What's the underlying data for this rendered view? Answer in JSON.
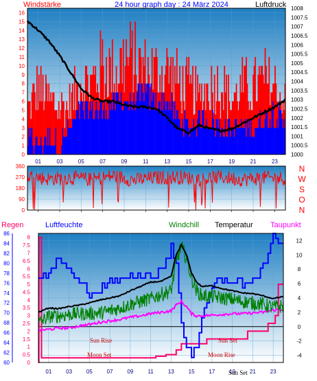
{
  "header": {
    "wind_label": "Windstärke",
    "title": "24 hour graph day : 24 März 2024",
    "pressure_label": "Luftdruck"
  },
  "compass": [
    "N",
    "W",
    "S",
    "O",
    "N"
  ],
  "bottom_labels": {
    "rain": "Regen",
    "humidity": "Luftfeuchte",
    "windchill": "Windchill",
    "temperature": "Temperatur",
    "dewpoint": "Taupunkt"
  },
  "annotations": {
    "sun_rise": "Sun Rise",
    "sun_set": "Sun Set",
    "moon_set": "Moon Set",
    "moon_rise": "Moon Rise",
    "sun_set_marker": "Sun Set"
  },
  "colors": {
    "wind_red": "#ff0000",
    "wind_blue": "#0000ff",
    "pressure": "#000000",
    "humidity": "#0000ff",
    "windchill": "#008000",
    "temperature": "#000000",
    "dewpoint": "#ff00ff",
    "rain": "#ff0066",
    "grad_top": "#1f7fc2",
    "grad_bottom": "#ffffff"
  },
  "chart_data": [
    {
      "type": "bar",
      "name_hint": "wind",
      "x_tick_labels": [
        "01",
        "03",
        "05",
        "07",
        "09",
        "11",
        "13",
        "15",
        "17",
        "19",
        "21",
        "23"
      ],
      "x_tick_hours": [
        1,
        3,
        5,
        7,
        9,
        11,
        13,
        15,
        17,
        19,
        21,
        23
      ],
      "xlim": [
        0,
        24
      ],
      "left_axis": {
        "ylim": [
          0,
          16.5
        ],
        "ticks": [
          0,
          1,
          2,
          3,
          4,
          5,
          6,
          7,
          8,
          9,
          10,
          11,
          12,
          13,
          14,
          15,
          16
        ]
      },
      "right_axis": {
        "ylim": [
          1000,
          1008
        ],
        "ticks": [
          1000,
          1000.5,
          1001,
          1001.5,
          1002,
          1002.5,
          1003,
          1003.5,
          1004,
          1004.5,
          1005,
          1005.5,
          1006,
          1006.5,
          1007,
          1007.5,
          1008
        ]
      },
      "gust_max": {
        "hours": [
          0,
          1,
          2,
          3,
          4,
          5,
          6,
          7,
          8,
          9,
          10,
          11,
          12,
          13,
          14,
          15,
          16,
          17,
          18,
          19,
          20,
          21,
          22,
          23,
          24
        ],
        "values": [
          7,
          11,
          9,
          8,
          8,
          12,
          12,
          15,
          13,
          16,
          15,
          14,
          13,
          14,
          12,
          11,
          9,
          11,
          12,
          9,
          11,
          11,
          12,
          11,
          8
        ]
      },
      "average": {
        "hours": [
          0,
          1,
          2,
          3,
          4,
          5,
          6,
          7,
          8,
          9,
          10,
          11,
          12,
          13,
          14,
          15,
          16,
          17,
          18,
          19,
          20,
          21,
          22,
          23,
          24
        ],
        "values": [
          2,
          1,
          2,
          1,
          3,
          5,
          5,
          5,
          6,
          6,
          6,
          7,
          6,
          6,
          4,
          3,
          4,
          4,
          3,
          3,
          3,
          3,
          4,
          5,
          3
        ]
      },
      "pressure": {
        "hours": [
          0,
          1,
          2,
          3,
          4,
          5,
          6,
          7,
          8,
          9,
          10,
          11,
          12,
          13,
          14,
          15,
          16,
          17,
          18,
          19,
          20,
          21,
          22,
          23,
          24
        ],
        "values": [
          1007.3,
          1006.8,
          1006.2,
          1005.4,
          1004.5,
          1003.6,
          1003.1,
          1002.9,
          1002.9,
          1002.7,
          1002.6,
          1002.6,
          1002.5,
          1002.0,
          1001.4,
          1001.2,
          1001.6,
          1001.4,
          1001.3,
          1001.4,
          1001.7,
          1002.0,
          1002.3,
          1002.6,
          1003.0
        ]
      }
    },
    {
      "type": "line",
      "name_hint": "wind direction",
      "x_tick_hours": [
        1,
        3,
        5,
        7,
        9,
        11,
        13,
        15,
        17,
        19,
        21,
        23
      ],
      "xlim": [
        0,
        24
      ],
      "ylim": [
        0,
        360
      ],
      "y_ticks": [
        0,
        90,
        180,
        270,
        360
      ],
      "direction": {
        "hours": [
          0,
          2,
          4,
          6,
          8,
          10,
          12,
          14,
          16,
          18,
          20,
          22,
          24
        ],
        "values": [
          280,
          255,
          265,
          250,
          280,
          245,
          265,
          270,
          255,
          270,
          250,
          265,
          260
        ]
      }
    },
    {
      "type": "line",
      "name_hint": "humidity temperature",
      "x_tick_labels": [
        "01",
        "03",
        "05",
        "07",
        "09",
        "11",
        "13",
        "15",
        "17",
        "19",
        "21",
        "23"
      ],
      "x_tick_hours": [
        1,
        3,
        5,
        7,
        9,
        11,
        13,
        15,
        17,
        19,
        21,
        23
      ],
      "xlim": [
        0,
        24
      ],
      "humidity_axis": {
        "ylim": [
          60,
          86
        ],
        "ticks": [
          60,
          62,
          64,
          66,
          68,
          70,
          72,
          74,
          76,
          78,
          80,
          82,
          84,
          86
        ]
      },
      "rain_axis": {
        "ylim": [
          0,
          8.25
        ],
        "ticks": [
          0,
          0.5,
          1,
          1.5,
          2,
          2.5,
          3,
          3.5,
          4,
          4.5,
          5,
          5.5,
          6,
          6.5,
          7,
          7.5,
          8
        ]
      },
      "temp_axis": {
        "ylim": [
          -5,
          13
        ],
        "ticks": [
          -4,
          -2,
          0,
          2,
          4,
          6,
          8,
          10,
          12
        ]
      },
      "humidity": {
        "hours": [
          0,
          1,
          2,
          3,
          4,
          5,
          6,
          7,
          8,
          9,
          10,
          11,
          12,
          13,
          13.5,
          14,
          14.5,
          15,
          15.5,
          16,
          17,
          18,
          19,
          20,
          21,
          22,
          23,
          24
        ],
        "values": [
          77,
          78,
          81,
          79,
          77,
          73,
          75,
          76,
          77,
          78,
          78,
          77,
          79,
          83,
          80,
          68,
          63,
          62,
          63,
          69,
          76,
          77,
          77,
          76,
          76,
          79,
          85,
          84
        ]
      },
      "temperature": {
        "hours": [
          0,
          1,
          2,
          3,
          4,
          5,
          6,
          7,
          8,
          9,
          10,
          11,
          12,
          13,
          13.5,
          14,
          14.5,
          15,
          15.5,
          16,
          17,
          18,
          19,
          20,
          21,
          22,
          23,
          24
        ],
        "values": [
          2.0,
          2.6,
          2.5,
          2.8,
          3.0,
          3.3,
          3.7,
          4.0,
          4.3,
          5.0,
          5.6,
          6.2,
          6.3,
          7.0,
          10.0,
          11.4,
          10.0,
          7.5,
          6.2,
          5.6,
          5.7,
          5.3,
          5.0,
          4.7,
          4.6,
          4.3,
          3.9,
          4.2
        ]
      },
      "windchill": {
        "hours": [
          0,
          1,
          2,
          3,
          4,
          5,
          6,
          7,
          8,
          9,
          10,
          11,
          12,
          13,
          13.5,
          14,
          14.5,
          15,
          15.5,
          16,
          17,
          18,
          19,
          20,
          21,
          22,
          23,
          24
        ],
        "values": [
          0.5,
          1.4,
          1.5,
          1.7,
          1.8,
          1.8,
          1.9,
          2.2,
          2.6,
          3.1,
          3.5,
          3.9,
          4.5,
          5.0,
          9.0,
          11.3,
          9.5,
          6.8,
          5.0,
          4.3,
          4.2,
          4.0,
          3.8,
          3.5,
          3.3,
          3.1,
          2.7,
          2.9
        ]
      },
      "dewpoint": {
        "hours": [
          0,
          1,
          2,
          3,
          4,
          5,
          6,
          7,
          8,
          9,
          10,
          11,
          12,
          13,
          13.5,
          14,
          14.5,
          15,
          15.5,
          16,
          17,
          18,
          19,
          20,
          21,
          22,
          23,
          24
        ],
        "values": [
          -0.5,
          -0.4,
          -0.2,
          -0.2,
          0.1,
          0.3,
          0.6,
          0.8,
          1.0,
          1.3,
          1.5,
          1.8,
          2.0,
          2.2,
          3.0,
          3.5,
          2.8,
          1.8,
          1.5,
          1.5,
          1.6,
          1.7,
          1.8,
          1.8,
          1.9,
          2.0,
          2.3,
          2.4
        ]
      },
      "rain": {
        "hours": [
          0,
          0.05,
          0.3,
          10.5,
          11.5,
          12.5,
          13.5,
          14,
          16.5,
          20.5,
          22.5,
          23.2,
          23.5,
          24
        ],
        "values": [
          0,
          8,
          0.3,
          0.3,
          0.4,
          0.5,
          0.8,
          1.2,
          1.5,
          2.0,
          2.5,
          3.0,
          5.0,
          5.0
        ]
      }
    }
  ]
}
